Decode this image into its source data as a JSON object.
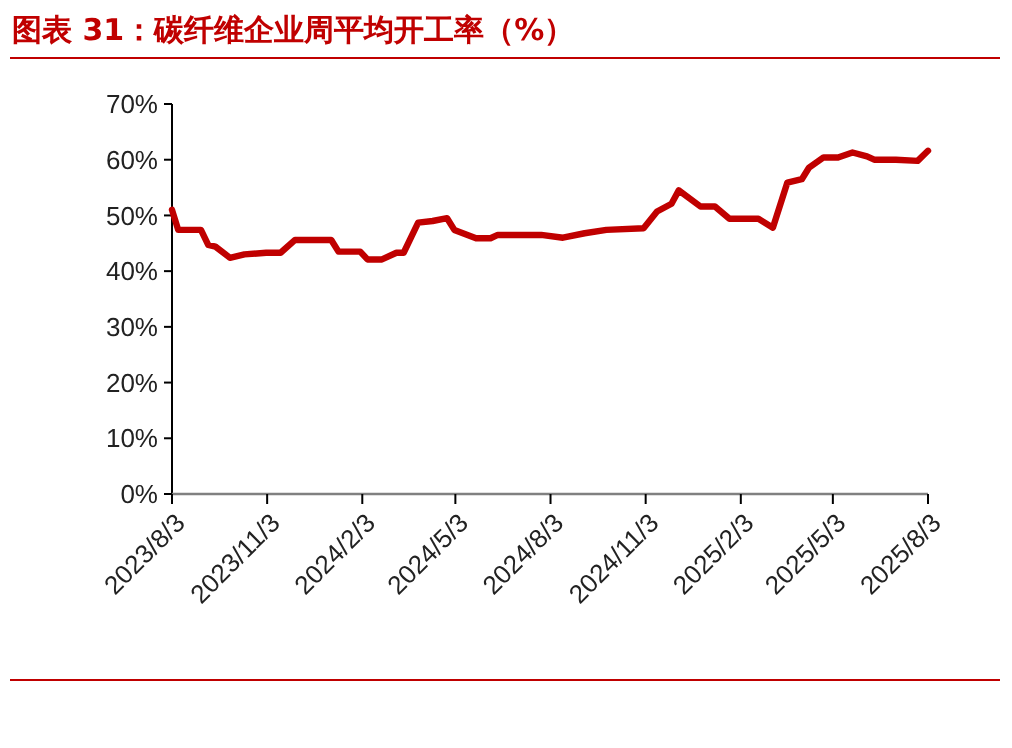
{
  "chart_data": {
    "type": "line",
    "title": "图表 31：碳纤维企业周平均开工率（%）",
    "x": [
      "2023-08-03",
      "2023-08-09",
      "2023-08-31",
      "2023-09-07",
      "2023-09-14",
      "2023-09-28",
      "2023-10-12",
      "2023-11-02",
      "2023-11-16",
      "2023-11-30",
      "2024-01-04",
      "2024-01-11",
      "2024-02-01",
      "2024-02-08",
      "2024-02-22",
      "2024-03-07",
      "2024-03-14",
      "2024-03-28",
      "2024-04-11",
      "2024-04-25",
      "2024-05-02",
      "2024-05-23",
      "2024-06-06",
      "2024-06-13",
      "2024-07-25",
      "2024-08-15",
      "2024-09-05",
      "2024-09-26",
      "2024-11-01",
      "2024-11-14",
      "2024-11-28",
      "2024-12-05",
      "2024-12-26",
      "2025-01-09",
      "2025-01-23",
      "2025-02-20",
      "2025-03-06",
      "2025-03-20",
      "2025-04-03",
      "2025-04-10",
      "2025-04-24",
      "2025-05-08",
      "2025-05-22",
      "2025-06-05",
      "2025-06-12",
      "2025-07-03",
      "2025-07-24",
      "2025-08-03"
    ],
    "series": [
      {
        "color": "#c00000",
        "values": [
          51,
          47.4,
          47.4,
          44.7,
          44.4,
          42.4,
          43,
          43.3,
          43.3,
          45.6,
          45.6,
          43.5,
          43.5,
          42.1,
          42.1,
          43.3,
          43.3,
          48.7,
          49,
          49.5,
          47.4,
          45.9,
          45.9,
          46.5,
          46.5,
          46,
          46.8,
          47.4,
          47.7,
          50.7,
          52.1,
          54.5,
          51.6,
          51.6,
          49.4,
          49.4,
          47.8,
          55.9,
          56.5,
          58.6,
          60.4,
          60.4,
          61.3,
          60.6,
          60,
          60,
          59.8,
          61.6
        ]
      }
    ],
    "xlim": [
      "2023-08-03",
      "2025-08-03"
    ],
    "xticks": [
      {
        "value": "2023-08-03",
        "label": "2023/8/3"
      },
      {
        "value": "2023-11-03",
        "label": "2023/11/3"
      },
      {
        "value": "2024-02-03",
        "label": "2024/2/3"
      },
      {
        "value": "2024-05-03",
        "label": "2024/5/3"
      },
      {
        "value": "2024-08-03",
        "label": "2024/8/3"
      },
      {
        "value": "2024-11-03",
        "label": "2024/11/3"
      },
      {
        "value": "2025-02-03",
        "label": "2025/2/3"
      },
      {
        "value": "2025-05-03",
        "label": "2025/5/3"
      },
      {
        "value": "2025-08-03",
        "label": "2025/8/3"
      }
    ],
    "ylim": [
      0,
      70
    ],
    "yticks": [
      {
        "value": 0,
        "label": "0%"
      },
      {
        "value": 10,
        "label": "10%"
      },
      {
        "value": 20,
        "label": "20%"
      },
      {
        "value": 30,
        "label": "30%"
      },
      {
        "value": 40,
        "label": "40%"
      },
      {
        "value": 50,
        "label": "50%"
      },
      {
        "value": 60,
        "label": "60%"
      },
      {
        "value": 70,
        "label": "70%"
      }
    ],
    "grid": false,
    "marker": "none",
    "line_style": "solid"
  }
}
